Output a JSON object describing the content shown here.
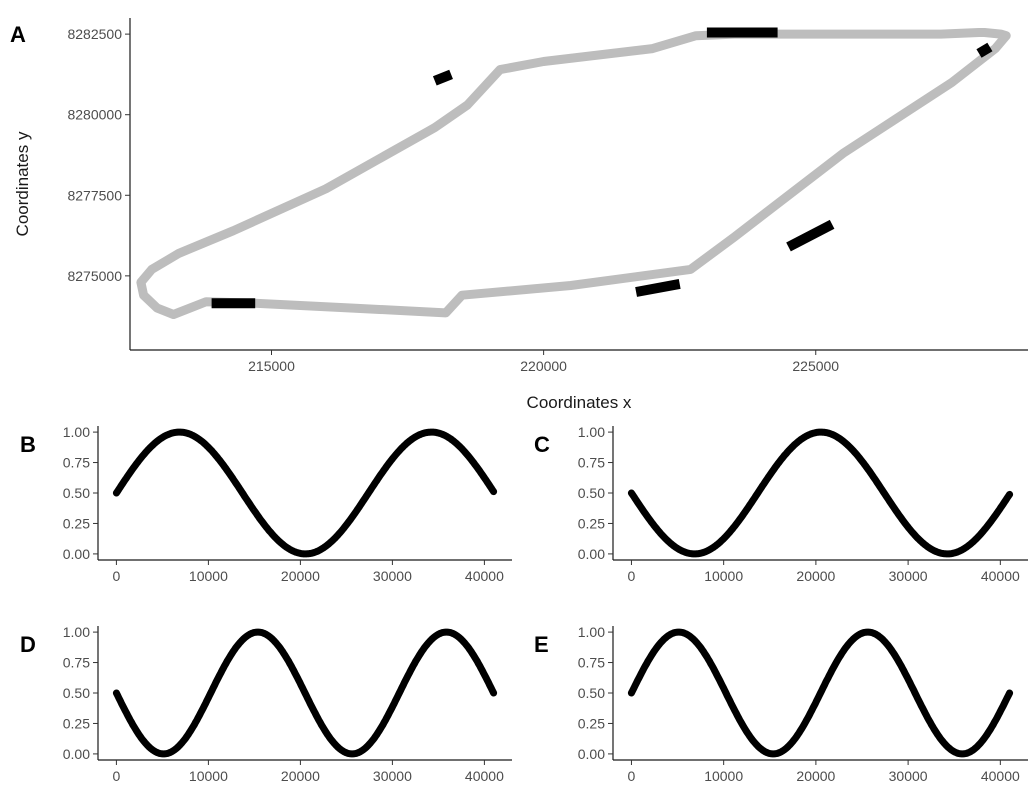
{
  "chart_data": [
    {
      "type": "line",
      "panel_label": "A",
      "xlabel": "Coordinates x",
      "ylabel": "Coordinates y",
      "xlim": [
        212400,
        228900
      ],
      "ylim": [
        8272700,
        8283000
      ],
      "xticks": [
        215000,
        220000,
        225000
      ],
      "yticks": [
        8275000,
        8277500,
        8280000,
        8282500
      ],
      "colors": {
        "path": "#bdbdbd",
        "highlight": "#000000"
      },
      "series": [
        {
          "x": [
            213200,
            212900,
            212650,
            212600,
            212800,
            213300,
            214300,
            216000,
            218000,
            218600,
            219200,
            220000,
            222000,
            222800,
            223500,
            224000,
            224200,
            224250,
            224100,
            224300,
            224700,
            225300,
            225800,
            226500,
            227300,
            228000,
            228100,
            228400,
            228500,
            228300,
            227500,
            225500,
            223500,
            222700,
            220500,
            218500,
            218200,
            216500,
            214700,
            213800,
            213200
          ],
          "y": [
            8273800,
            8274000,
            8274400,
            8274800,
            8275200,
            8275700,
            8276400,
            8277700,
            8279600,
            8280300,
            8281400,
            8281650,
            8282050,
            8282450,
            8282500,
            8282500,
            8282500,
            8282500,
            8282500,
            8282500,
            8282500,
            8282500,
            8282500,
            8282500,
            8282500,
            8282550,
            8282550,
            8282500,
            8282450,
            8282050,
            8281000,
            8278800,
            8276200,
            8275200,
            8274700,
            8274400,
            8273850,
            8274000,
            8274150,
            8274200,
            8273800
          ]
        }
      ],
      "highlights": [
        {
          "x": [
            213900,
            214700
          ],
          "y": [
            8274150,
            8274150
          ]
        },
        {
          "x": [
            218000,
            218300
          ],
          "y": [
            8281050,
            8281250
          ]
        },
        {
          "x": [
            223000,
            224300
          ],
          "y": [
            8282550,
            8282550
          ]
        },
        {
          "x": [
            228000,
            228200
          ],
          "y": [
            8281900,
            8282100
          ]
        },
        {
          "x": [
            224500,
            225300
          ],
          "y": [
            8275900,
            8276600
          ]
        },
        {
          "x": [
            221700,
            222500
          ],
          "y": [
            8274500,
            8274750
          ]
        }
      ]
    },
    {
      "type": "line",
      "panel_label": "B",
      "xlim": [
        -2000,
        43000
      ],
      "ylim": [
        -0.05,
        1.05
      ],
      "xticks": [
        0,
        10000,
        20000,
        30000,
        40000
      ],
      "yticks": [
        "0.00",
        "0.25",
        "0.50",
        "0.75",
        "1.00"
      ],
      "series": [
        {
          "x_range": [
            0,
            41000
          ],
          "period": 27400,
          "phase_peak_x": 6850
        }
      ]
    },
    {
      "type": "line",
      "panel_label": "C",
      "xlim": [
        -2000,
        43000
      ],
      "ylim": [
        -0.05,
        1.05
      ],
      "xticks": [
        0,
        10000,
        20000,
        30000,
        40000
      ],
      "yticks": [
        "0.00",
        "0.25",
        "0.50",
        "0.75",
        "1.00"
      ],
      "series": [
        {
          "x_range": [
            0,
            41000
          ],
          "period": 27400,
          "phase_peak_x": 20550
        }
      ]
    },
    {
      "type": "line",
      "panel_label": "D",
      "xlim": [
        -2000,
        43000
      ],
      "ylim": [
        -0.05,
        1.05
      ],
      "xticks": [
        0,
        10000,
        20000,
        30000,
        40000
      ],
      "yticks": [
        "0.00",
        "0.25",
        "0.50",
        "0.75",
        "1.00"
      ],
      "series": [
        {
          "x_range": [
            0,
            41000
          ],
          "period": 20500,
          "phase_peak_x": 15375
        }
      ]
    },
    {
      "type": "line",
      "panel_label": "E",
      "xlim": [
        -2000,
        43000
      ],
      "ylim": [
        -0.05,
        1.05
      ],
      "xticks": [
        0,
        10000,
        20000,
        30000,
        40000
      ],
      "yticks": [
        "0.00",
        "0.25",
        "0.50",
        "0.75",
        "1.00"
      ],
      "series": [
        {
          "x_range": [
            0,
            41000
          ],
          "period": 20500,
          "phase_peak_x": 5125
        }
      ]
    }
  ]
}
